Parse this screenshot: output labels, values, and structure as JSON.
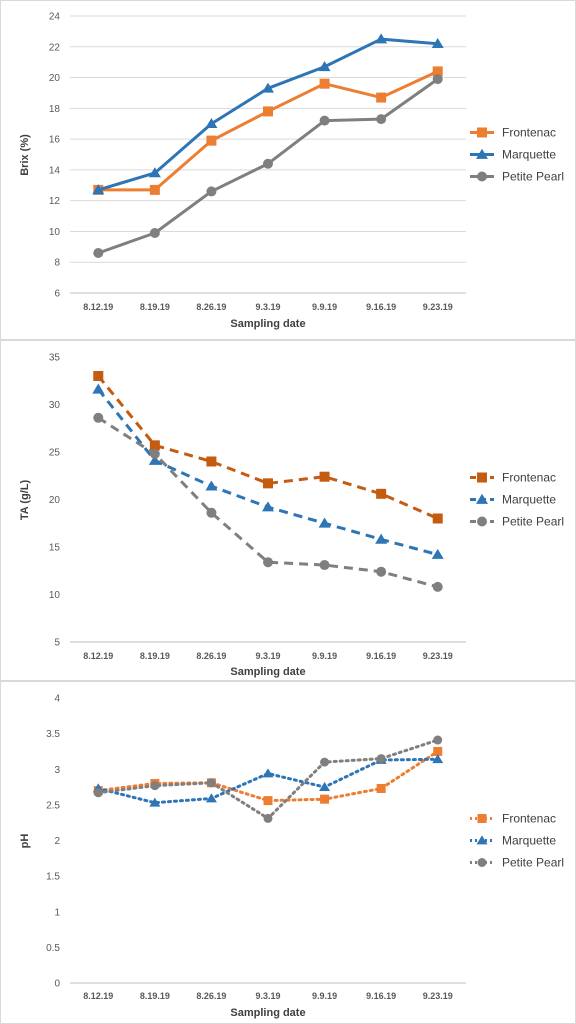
{
  "chart_data": [
    {
      "type": "line",
      "line_style": "solid",
      "categories": [
        "8.12.19",
        "8.19.19",
        "8.26.19",
        "9.3.19",
        "9.9.19",
        "9.16.19",
        "9.23.19"
      ],
      "xlabel": "Sampling date",
      "ylabel": "Brix (%)",
      "ylim": [
        6,
        24
      ],
      "yticks": [
        6,
        8,
        10,
        12,
        14,
        16,
        18,
        20,
        22,
        24
      ],
      "grid": true,
      "legend": "right",
      "series": [
        {
          "name": "Frontenac",
          "color": "#ED7D31",
          "marker": "square",
          "values": [
            12.7,
            12.7,
            15.9,
            17.8,
            19.6,
            18.7,
            20.4
          ]
        },
        {
          "name": "Marquette",
          "color": "#2E75B6",
          "marker": "triangle",
          "values": [
            12.7,
            13.8,
            17.0,
            19.3,
            20.7,
            22.5,
            22.2
          ]
        },
        {
          "name": "Petite Pearl",
          "color": "#7F7F7F",
          "marker": "circle",
          "values": [
            8.6,
            9.9,
            12.6,
            14.4,
            17.2,
            17.3,
            19.9
          ]
        }
      ]
    },
    {
      "type": "line",
      "line_style": "dashed",
      "categories": [
        "8.12.19",
        "8.19.19",
        "8.26.19",
        "9.3.19",
        "9.9.19",
        "9.16.19",
        "9.23.19"
      ],
      "xlabel": "Sampling date",
      "ylabel": "TA (g/L)",
      "ylim": [
        5,
        35
      ],
      "yticks": [
        5,
        10,
        15,
        20,
        25,
        30,
        35
      ],
      "grid": false,
      "legend": "right",
      "series": [
        {
          "name": "Frontenac",
          "color": "#C55A11",
          "marker": "square",
          "values": [
            33.0,
            25.7,
            24.0,
            21.7,
            22.4,
            20.6,
            18.0
          ]
        },
        {
          "name": "Marquette",
          "color": "#2E75B6",
          "marker": "triangle",
          "values": [
            31.6,
            24.1,
            21.4,
            19.2,
            17.5,
            15.8,
            14.2
          ]
        },
        {
          "name": "Petite Pearl",
          "color": "#7F7F7F",
          "marker": "circle",
          "values": [
            28.6,
            24.8,
            18.6,
            13.4,
            13.1,
            12.4,
            10.8
          ]
        }
      ]
    },
    {
      "type": "line",
      "line_style": "dotted",
      "categories": [
        "8.12.19",
        "8.19.19",
        "8.26.19",
        "9.3.19",
        "9.9.19",
        "9.16.19",
        "9.23.19"
      ],
      "xlabel": "Sampling date",
      "ylabel": "pH",
      "ylim": [
        0,
        4
      ],
      "yticks": [
        0,
        0.5,
        1,
        1.5,
        2,
        2.5,
        3,
        3.5,
        4
      ],
      "grid": false,
      "legend": "right",
      "series": [
        {
          "name": "Frontenac",
          "color": "#ED7D31",
          "marker": "square",
          "values": [
            2.7,
            2.8,
            2.81,
            2.56,
            2.58,
            2.73,
            3.25
          ]
        },
        {
          "name": "Marquette",
          "color": "#2E75B6",
          "marker": "triangle",
          "values": [
            2.73,
            2.53,
            2.59,
            2.94,
            2.75,
            3.13,
            3.14
          ]
        },
        {
          "name": "Petite Pearl",
          "color": "#7F7F7F",
          "marker": "circle",
          "values": [
            2.67,
            2.77,
            2.81,
            2.31,
            3.1,
            3.15,
            3.41
          ]
        }
      ]
    }
  ]
}
